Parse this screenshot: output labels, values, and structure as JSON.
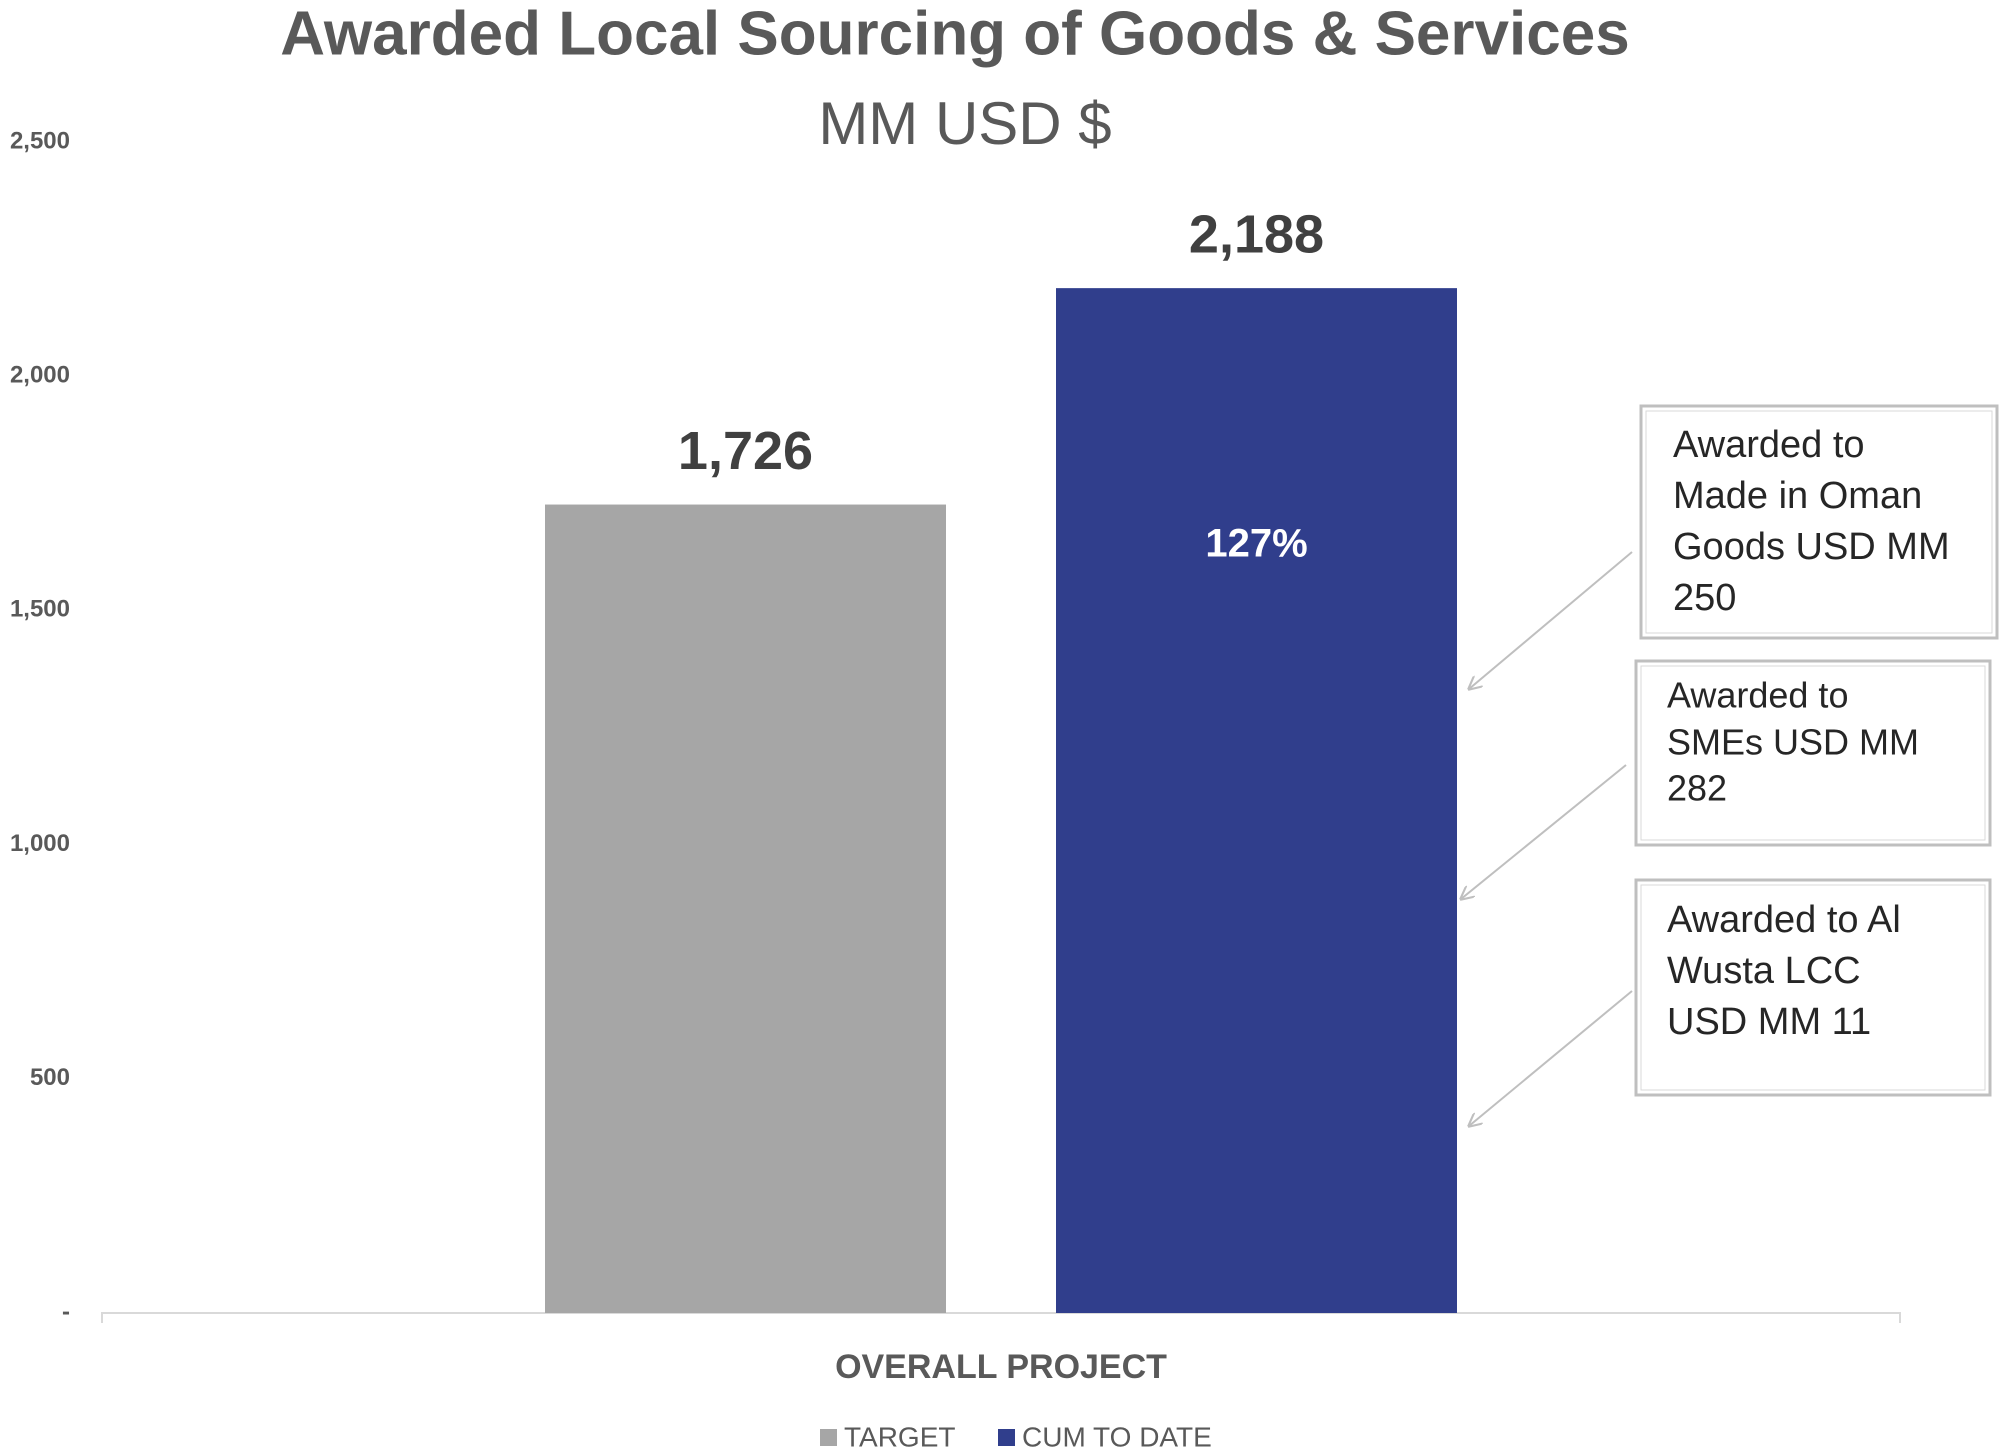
{
  "chart_data": {
    "type": "bar",
    "title": "Awarded Local Sourcing of Goods & Services",
    "subtitle": "MM USD $",
    "categories": [
      "OVERALL PROJECT"
    ],
    "series": [
      {
        "name": "TARGET",
        "color": "#a6a6a6",
        "values": [
          1726
        ],
        "value_labels": [
          "1,726"
        ]
      },
      {
        "name": "CUM TO DATE",
        "color": "#303e8c",
        "values": [
          2188
        ],
        "value_labels": [
          "2,188"
        ],
        "inner_label": "127%"
      }
    ],
    "ylim": [
      0,
      2500
    ],
    "yticks": [
      {
        "value": 0,
        "label": "-"
      },
      500,
      {
        "value": 1000,
        "label": "1,000"
      },
      {
        "value": 1500,
        "label": "1,500"
      },
      {
        "value": 2000,
        "label": "2,000"
      },
      {
        "value": 2500,
        "label": "2,500"
      }
    ],
    "grid": false,
    "legend": "bottom",
    "annotations": [
      {
        "lines": [
          "Awarded to",
          "Made in Oman",
          "Goods USD MM",
          "250"
        ]
      },
      {
        "lines": [
          "Awarded to",
          "SMEs USD MM",
          "282"
        ]
      },
      {
        "lines": [
          "Awarded to Al",
          "Wusta LCC",
          "USD MM 11"
        ]
      }
    ]
  }
}
